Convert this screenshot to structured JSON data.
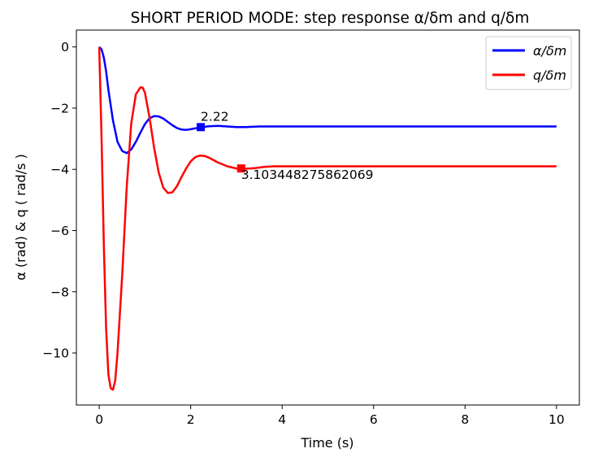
{
  "chart_data": {
    "type": "line",
    "title": "SHORT PERIOD MODE: step response α/δm and q/δm",
    "xlabel": "Time (s)",
    "ylabel": "α (rad) & q ( rad/s )",
    "xlim": [
      -0.5,
      10.5
    ],
    "ylim": [
      -11.7,
      0.55
    ],
    "xticks": [
      0,
      2,
      4,
      6,
      8,
      10
    ],
    "yticks": [
      0,
      -2,
      -4,
      -6,
      -8,
      -10
    ],
    "grid": false,
    "legend_position": "top-right",
    "series": [
      {
        "name": "α/δm",
        "color": "#0000ff",
        "x": [
          0,
          0.05,
          0.1,
          0.15,
          0.2,
          0.3,
          0.4,
          0.5,
          0.6,
          0.7,
          0.8,
          0.9,
          1.0,
          1.1,
          1.2,
          1.3,
          1.4,
          1.5,
          1.6,
          1.7,
          1.8,
          1.9,
          2.0,
          2.2,
          2.4,
          2.6,
          2.8,
          3.0,
          3.2,
          3.5,
          3.8,
          4.0,
          4.5,
          5,
          6,
          7,
          8,
          9,
          10
        ],
        "y": [
          0,
          -0.08,
          -0.35,
          -0.8,
          -1.4,
          -2.4,
          -3.1,
          -3.4,
          -3.47,
          -3.35,
          -3.1,
          -2.8,
          -2.52,
          -2.33,
          -2.26,
          -2.27,
          -2.34,
          -2.45,
          -2.56,
          -2.65,
          -2.7,
          -2.71,
          -2.69,
          -2.63,
          -2.59,
          -2.58,
          -2.6,
          -2.62,
          -2.62,
          -2.6,
          -2.6,
          -2.6,
          -2.6,
          -2.6,
          -2.6,
          -2.6,
          -2.6,
          -2.6,
          -2.6
        ]
      },
      {
        "name": "q/δm",
        "color": "#ff0000",
        "x": [
          0,
          0.05,
          0.1,
          0.15,
          0.2,
          0.25,
          0.3,
          0.35,
          0.4,
          0.5,
          0.6,
          0.7,
          0.8,
          0.9,
          0.95,
          1.0,
          1.1,
          1.2,
          1.3,
          1.4,
          1.5,
          1.6,
          1.7,
          1.8,
          1.9,
          2.0,
          2.1,
          2.2,
          2.3,
          2.4,
          2.5,
          2.6,
          2.8,
          3.0,
          3.2,
          3.4,
          3.6,
          3.8,
          4.0,
          4.5,
          5,
          6,
          7,
          8,
          9,
          10
        ],
        "y": [
          0,
          -3.0,
          -6.5,
          -9.2,
          -10.7,
          -11.15,
          -11.2,
          -10.9,
          -10.0,
          -7.5,
          -4.6,
          -2.5,
          -1.55,
          -1.32,
          -1.33,
          -1.5,
          -2.3,
          -3.3,
          -4.1,
          -4.6,
          -4.77,
          -4.75,
          -4.55,
          -4.25,
          -3.97,
          -3.74,
          -3.6,
          -3.55,
          -3.56,
          -3.62,
          -3.7,
          -3.78,
          -3.9,
          -3.97,
          -3.98,
          -3.96,
          -3.92,
          -3.9,
          -3.9,
          -3.9,
          -3.9,
          -3.9,
          -3.9,
          -3.9,
          -3.9,
          -3.9
        ]
      }
    ],
    "markers": [
      {
        "series": 0,
        "x": 2.22,
        "y": -2.62,
        "label": "2.22",
        "color": "#0000ff"
      },
      {
        "series": 1,
        "x": 3.103448275862069,
        "y": -3.97,
        "label": "3.103448275862069",
        "color": "#ff0000"
      }
    ]
  }
}
